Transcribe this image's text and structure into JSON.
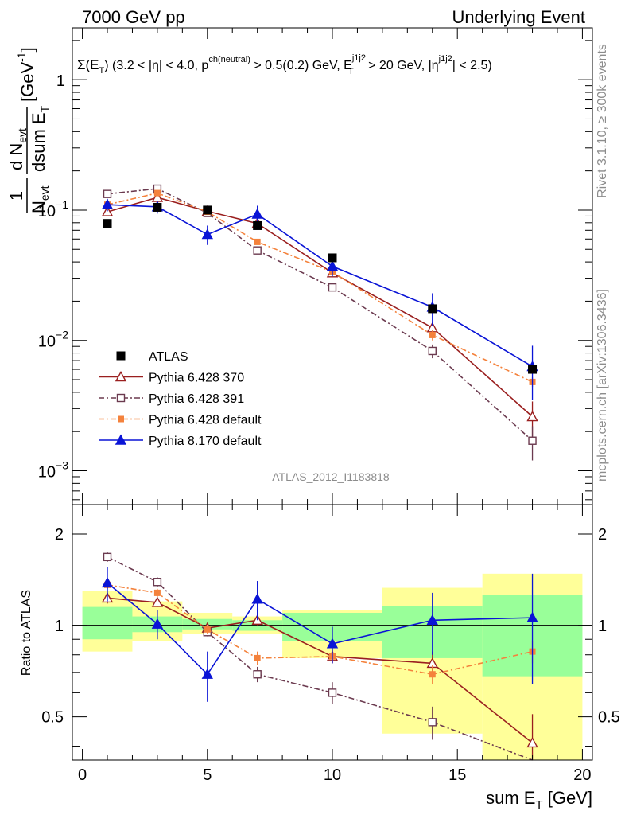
{
  "header": {
    "left": "7000 GeV pp",
    "right": "Underlying Event"
  },
  "side_labels": {
    "rivet": "Rivet 3.1.10, ≥ 300k events",
    "mcplots": "mcplots.cern.ch [arXiv:1306.3436]"
  },
  "chart_data": [
    {
      "type": "line",
      "panel": "main",
      "title": {
        "sigma": "Σ(E",
        "sigma_sub": "T",
        "part1": ") (3.2 < |η| < 4.0, p",
        "p_sup": "ch(neutral)",
        "part2": " > 0.5(0.2) GeV, E",
        "e_sup": "j1j2",
        "e_sub": "T",
        "part3": " > 20 GeV, |η",
        "eta_sup": "j1j2",
        "part4": "| < 2.5)"
      },
      "ylabel": {
        "frac1_top": "1",
        "frac1_bottom": "N",
        "frac1_bottom_sub": "evt",
        "frac2_top": "d N",
        "frac2_top_sub": "evt",
        "frac2_bottom": "dsum E",
        "frac2_bottom_sub": "T",
        "unit": "[GeV",
        "unit_sup": "-1",
        "unit_close": "]"
      },
      "yscale": "log",
      "ylim": [
        0.00055,
        2.5
      ],
      "xlim": [
        -0.4,
        20.4
      ],
      "y_tick_labels": [
        {
          "value": 1,
          "base": "1",
          "exp": ""
        },
        {
          "value": 0.1,
          "base": "10",
          "exp": "−1"
        },
        {
          "value": 0.01,
          "base": "10",
          "exp": "−2"
        },
        {
          "value": 0.001,
          "base": "10",
          "exp": "−3"
        }
      ],
      "analysis_label": "ATLAS_2012_I1183818",
      "legend_position": "bottom-left",
      "data": {
        "name": "ATLAS",
        "x": [
          1,
          3,
          5,
          7,
          10,
          14,
          18
        ],
        "y": [
          0.079,
          0.105,
          0.1,
          0.076,
          0.043,
          0.0175,
          0.006
        ],
        "yerr": [
          0.004,
          0.006,
          0.006,
          0.005,
          0.003,
          0.0015,
          0.0007
        ],
        "color": "#000000"
      },
      "series": [
        {
          "name": "Pythia 6.428 370",
          "x": [
            1,
            3,
            5,
            7,
            10,
            14,
            18
          ],
          "y": [
            0.097,
            0.125,
            0.098,
            0.079,
            0.033,
            0.0125,
            0.0026
          ],
          "yerr": [
            0.004,
            0.004,
            0.003,
            0.003,
            0.002,
            0.001,
            0.0008
          ],
          "color": "#9a1f1f",
          "marker": "triangle-open",
          "dash": ""
        },
        {
          "name": "Pythia 6.428 391",
          "x": [
            1,
            3,
            5,
            7,
            10,
            14,
            18
          ],
          "y": [
            0.133,
            0.146,
            0.095,
            0.049,
            0.0255,
            0.0083,
            0.0017
          ],
          "yerr": [
            0.005,
            0.005,
            0.003,
            0.003,
            0.0015,
            0.001,
            0.0005
          ],
          "color": "#6b3a4f",
          "marker": "square-open",
          "dash": "7,3,2,3"
        },
        {
          "name": "Pythia 6.428 default",
          "x": [
            1,
            3,
            5,
            7,
            10,
            14,
            18
          ],
          "y": [
            0.11,
            0.135,
            0.097,
            0.057,
            0.0335,
            0.011,
            0.0048
          ],
          "yerr": [
            0.003,
            0.003,
            0.002,
            0.002,
            0.0015,
            0.001,
            0.0004
          ],
          "color": "#f4823c",
          "marker": "square-filled",
          "dash": "7,3,2,3"
        },
        {
          "name": "Pythia 8.170 default",
          "x": [
            1,
            3,
            5,
            7,
            10,
            14,
            18
          ],
          "y": [
            0.11,
            0.106,
            0.065,
            0.093,
            0.037,
            0.018,
            0.0063
          ],
          "yerr": [
            0.012,
            0.012,
            0.011,
            0.015,
            0.006,
            0.005,
            0.0028
          ],
          "color": "#0a14d6",
          "marker": "triangle-filled",
          "dash": ""
        }
      ]
    },
    {
      "type": "line",
      "panel": "ratio",
      "ylabel": "Ratio to ATLAS",
      "yscale": "log",
      "ylim": [
        0.36,
        2.5
      ],
      "xlim": [
        -0.4,
        20.4
      ],
      "xlabel": {
        "main": "sum E",
        "sub": "T",
        "unit": " [GeV]"
      },
      "x_tick_labels": [
        "0",
        "5",
        "10",
        "15",
        "20"
      ],
      "y_tick_labels": [
        "0.5",
        "1",
        "2"
      ],
      "reference_line": 1,
      "bands": [
        {
          "x0": 0,
          "x1": 2,
          "inner": [
            0.9,
            1.15
          ],
          "outer": [
            0.82,
            1.3
          ]
        },
        {
          "x0": 2,
          "x1": 4,
          "inner": [
            0.95,
            1.07
          ],
          "outer": [
            0.89,
            1.2
          ]
        },
        {
          "x0": 4,
          "x1": 6,
          "inner": [
            0.97,
            1.05
          ],
          "outer": [
            0.94,
            1.1
          ]
        },
        {
          "x0": 6,
          "x1": 8,
          "inner": [
            0.96,
            1.04
          ],
          "outer": [
            0.94,
            1.07
          ]
        },
        {
          "x0": 8,
          "x1": 12,
          "inner": [
            0.89,
            1.1
          ],
          "outer": [
            0.78,
            1.12
          ]
        },
        {
          "x0": 12,
          "x1": 16,
          "inner": [
            0.78,
            1.16
          ],
          "outer": [
            0.44,
            1.33
          ]
        },
        {
          "x0": 16,
          "x1": 20,
          "inner": [
            0.68,
            1.26
          ],
          "outer": [
            0.36,
            1.48
          ]
        }
      ],
      "series": [
        {
          "name": "Pythia 6.428 370",
          "x": [
            1,
            3,
            5,
            7,
            10,
            14,
            18
          ],
          "y": [
            1.23,
            1.19,
            0.98,
            1.04,
            0.79,
            0.75,
            0.41
          ],
          "yerr": [
            0.05,
            0.04,
            0.03,
            0.04,
            0.04,
            0.07,
            0.1
          ],
          "color": "#9a1f1f",
          "marker": "triangle-open",
          "dash": ""
        },
        {
          "name": "Pythia 6.428 391",
          "x": [
            1,
            3,
            5,
            7,
            10,
            14,
            18
          ],
          "y": [
            1.68,
            1.39,
            0.95,
            0.69,
            0.6,
            0.48,
            0.28
          ],
          "yerr": [
            0.06,
            0.05,
            0.03,
            0.04,
            0.05,
            0.06,
            0.08
          ],
          "color": "#6b3a4f",
          "marker": "square-open",
          "dash": "7,3,2,3"
        },
        {
          "name": "Pythia 6.428 default",
          "x": [
            1,
            3,
            5,
            7,
            10,
            14,
            18
          ],
          "y": [
            1.36,
            1.28,
            0.97,
            0.78,
            0.79,
            0.69,
            0.82
          ],
          "yerr": [
            0.04,
            0.04,
            0.03,
            0.04,
            0.04,
            0.05,
            0.07
          ],
          "color": "#f4823c",
          "marker": "square-filled",
          "dash": "7,3,2,3"
        },
        {
          "name": "Pythia 8.170 default",
          "x": [
            1,
            3,
            5,
            7,
            10,
            14,
            18
          ],
          "y": [
            1.38,
            1.01,
            0.69,
            1.22,
            0.87,
            1.04,
            1.06
          ],
          "yerr": [
            0.18,
            0.11,
            0.13,
            0.18,
            0.12,
            0.24,
            0.42
          ],
          "color": "#0a14d6",
          "marker": "triangle-filled",
          "dash": ""
        }
      ]
    }
  ]
}
